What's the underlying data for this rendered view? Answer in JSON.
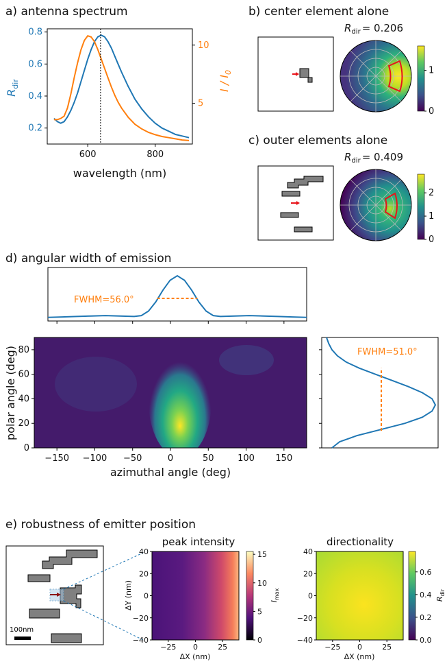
{
  "panels": {
    "a": {
      "title": "a) antenna spectrum"
    },
    "b": {
      "title": "b) center element alone",
      "rdir_label": "R",
      "rdir_sub": "dir",
      "rdir_value": "= 0.206"
    },
    "c": {
      "title": "c) outer elements alone",
      "rdir_label": "R",
      "rdir_sub": "dir",
      "rdir_value": "= 0.409"
    },
    "d": {
      "title": "d) angular width of emission"
    },
    "e": {
      "title": "e) robustness of emitter position",
      "scale_bar": "100nm"
    }
  },
  "colors": {
    "blue": "#1f77b4",
    "orange": "#ff7f0e",
    "red": "#e8141a",
    "gray": "#808080"
  },
  "chart_data": [
    {
      "id": "a",
      "type": "line",
      "xlabel": "wavelength (nm)",
      "ylabel_left": "R_dir",
      "ylabel_right": "I / I_0",
      "xlim": [
        480,
        910
      ],
      "ylim_left": [
        0.1,
        0.82
      ],
      "ylim_right": [
        1.5,
        11.4
      ],
      "xticks": [
        600,
        800
      ],
      "yticks_left": [
        0.2,
        0.4,
        0.6,
        0.8
      ],
      "yticks_right": [
        5,
        10
      ],
      "vline": 638,
      "series": [
        {
          "axis": "left",
          "color": "#1f77b4",
          "x": [
            500,
            510,
            520,
            530,
            540,
            550,
            560,
            570,
            580,
            590,
            600,
            610,
            620,
            630,
            640,
            650,
            660,
            670,
            680,
            690,
            700,
            720,
            740,
            760,
            780,
            800,
            820,
            840,
            860,
            880,
            900
          ],
          "y": [
            0.26,
            0.24,
            0.23,
            0.24,
            0.27,
            0.31,
            0.36,
            0.42,
            0.49,
            0.56,
            0.63,
            0.69,
            0.74,
            0.77,
            0.78,
            0.77,
            0.74,
            0.7,
            0.65,
            0.6,
            0.55,
            0.46,
            0.38,
            0.32,
            0.27,
            0.23,
            0.2,
            0.18,
            0.16,
            0.15,
            0.14
          ]
        },
        {
          "axis": "right",
          "color": "#ff7f0e",
          "x": [
            500,
            510,
            520,
            530,
            540,
            550,
            560,
            570,
            580,
            590,
            600,
            610,
            620,
            630,
            640,
            650,
            660,
            670,
            680,
            690,
            700,
            720,
            740,
            760,
            780,
            800,
            820,
            840,
            860,
            880,
            900
          ],
          "y": [
            3.6,
            3.6,
            3.7,
            3.9,
            4.6,
            5.8,
            7.2,
            8.5,
            9.6,
            10.4,
            10.8,
            10.7,
            10.3,
            9.6,
            8.8,
            8.0,
            7.2,
            6.4,
            5.7,
            5.1,
            4.6,
            3.8,
            3.2,
            2.8,
            2.5,
            2.3,
            2.15,
            2.05,
            1.95,
            1.85,
            1.8
          ]
        }
      ]
    },
    {
      "id": "b",
      "type": "heatmap",
      "colorbar_ticks": [
        0,
        1
      ],
      "colorbar_range": [
        0,
        1.6
      ]
    },
    {
      "id": "c",
      "type": "heatmap",
      "colorbar_ticks": [
        0,
        1,
        2
      ],
      "colorbar_range": [
        0,
        2.8
      ]
    },
    {
      "id": "d_top",
      "type": "line",
      "annotation": "FWHM=56.0°",
      "x": [
        -180,
        -160,
        -140,
        -120,
        -100,
        -80,
        -60,
        -50,
        -40,
        -30,
        -20,
        -10,
        0,
        10,
        20,
        30,
        40,
        50,
        60,
        80,
        100,
        120,
        140,
        160,
        180
      ],
      "y": [
        0.08,
        0.09,
        0.1,
        0.11,
        0.12,
        0.11,
        0.1,
        0.12,
        0.22,
        0.42,
        0.68,
        0.9,
        1.0,
        0.9,
        0.68,
        0.42,
        0.22,
        0.12,
        0.1,
        0.11,
        0.12,
        0.11,
        0.1,
        0.09,
        0.08
      ],
      "fwhm_range": [
        -28,
        28
      ],
      "fwhm_level": 0.5
    },
    {
      "id": "d_main",
      "type": "heatmap",
      "xlabel": "azimuthal angle (deg)",
      "ylabel": "polar angle (deg)",
      "xlim": [
        -180,
        180
      ],
      "ylim": [
        0,
        90
      ],
      "xticks": [
        -150,
        -100,
        -50,
        0,
        50,
        100,
        150
      ],
      "yticks": [
        0,
        20,
        40,
        60,
        80
      ]
    },
    {
      "id": "d_right",
      "type": "line",
      "annotation": "FWHM=51.0°",
      "polar": [
        0,
        5,
        10,
        15,
        20,
        25,
        30,
        35,
        40,
        45,
        50,
        55,
        60,
        65,
        70,
        75,
        80,
        85,
        90
      ],
      "intensity": [
        0.05,
        0.12,
        0.28,
        0.5,
        0.72,
        0.88,
        0.97,
        1.0,
        0.97,
        0.88,
        0.75,
        0.6,
        0.45,
        0.3,
        0.18,
        0.1,
        0.05,
        0.02,
        0.0
      ],
      "fwhm_range": [
        14,
        65
      ]
    },
    {
      "id": "e_peak",
      "type": "heatmap",
      "title": "peak intensity",
      "xlabel": "ΔX (nm)",
      "ylabel": "ΔY (nm)",
      "cbar_label": "I_max",
      "xlim": [
        -40,
        40
      ],
      "ylim": [
        -40,
        40
      ],
      "xticks": [
        -25,
        0,
        25
      ],
      "yticks": [
        -40,
        -20,
        0,
        20,
        40
      ],
      "colorbar_ticks": [
        0,
        5,
        10,
        15
      ],
      "colorbar_range": [
        0,
        15.5
      ]
    },
    {
      "id": "e_dir",
      "type": "heatmap",
      "title": "directionality",
      "xlabel": "ΔX (nm)",
      "ylabel": "",
      "cbar_label": "R_dir",
      "xlim": [
        -40,
        40
      ],
      "ylim": [
        -40,
        40
      ],
      "xticks": [
        -25,
        0,
        25
      ],
      "yticks": [
        -40,
        -20,
        0,
        20,
        40
      ],
      "colorbar_ticks": [
        0.0,
        0.2,
        0.4,
        0.6
      ],
      "colorbar_range": [
        0,
        0.78
      ]
    }
  ]
}
